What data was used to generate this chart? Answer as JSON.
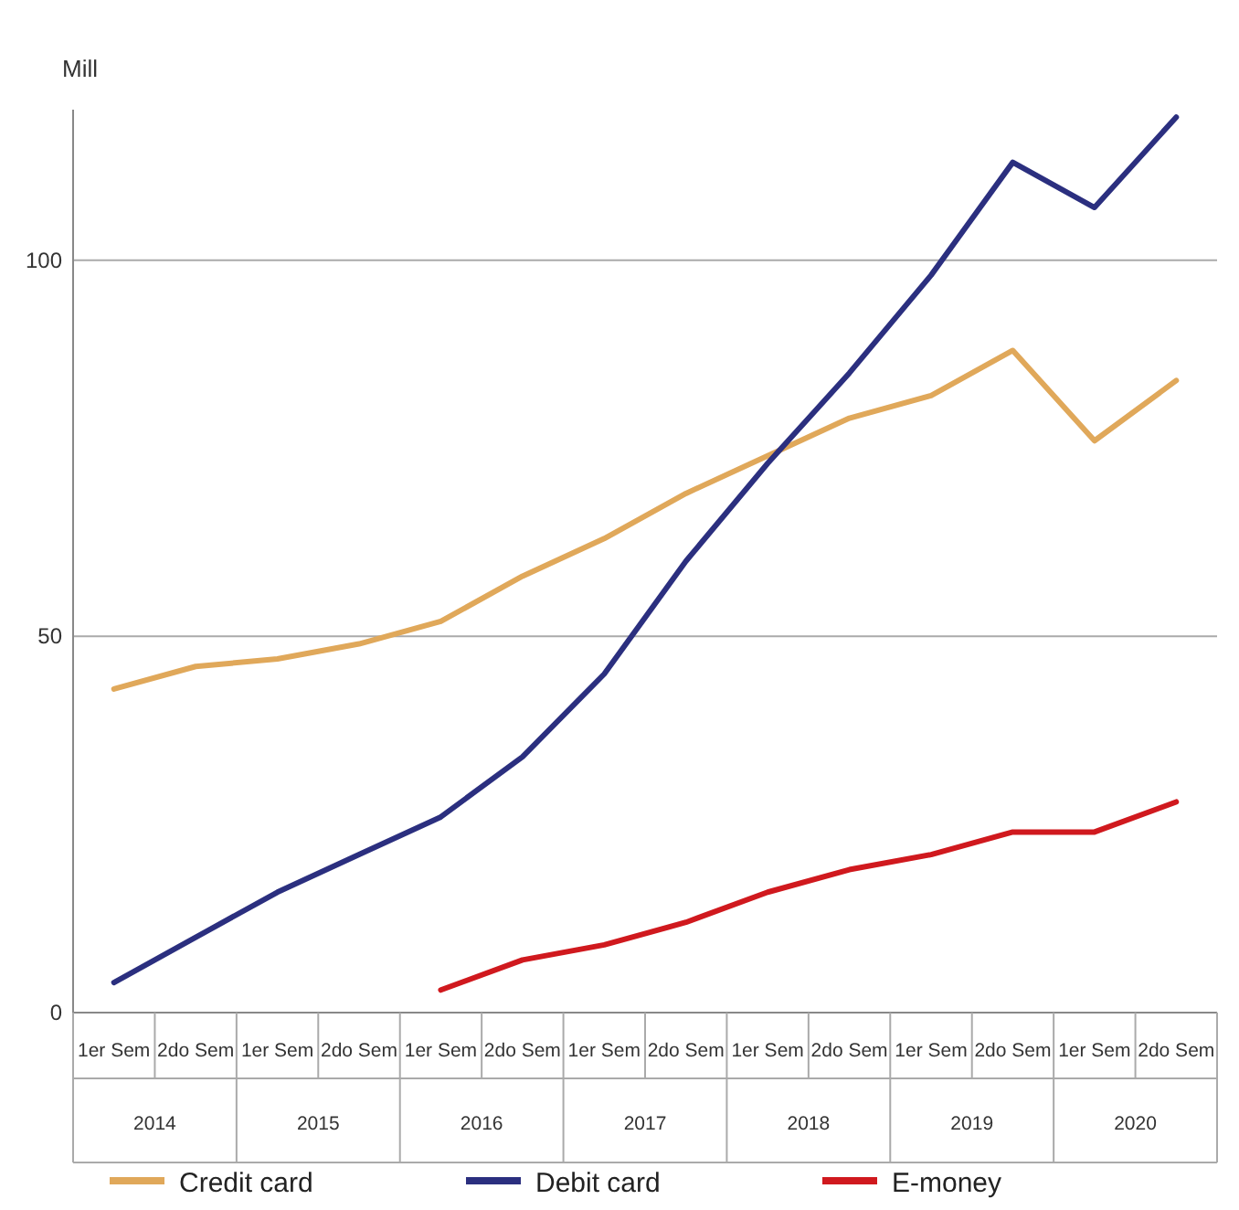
{
  "chart_data": {
    "type": "line",
    "ylabel": "Mill",
    "categories": [
      "1er Sem",
      "2do Sem",
      "1er Sem",
      "2do Sem",
      "1er Sem",
      "2do Sem",
      "1er Sem",
      "2do Sem",
      "1er Sem",
      "2do Sem",
      "1er Sem",
      "2do Sem",
      "1er Sem",
      "2do Sem"
    ],
    "annotations": [
      "2014",
      "2015",
      "2016",
      "2017",
      "2018",
      "2019",
      "2020"
    ],
    "series": [
      {
        "name": "Credit card",
        "color": "#e0a85a",
        "values": [
          43,
          46,
          47,
          49,
          52,
          58,
          63,
          69,
          74,
          79,
          82,
          88,
          76,
          84
        ]
      },
      {
        "name": "Debit card",
        "color": "#2b2f7f",
        "values": [
          4,
          10,
          16,
          21,
          26,
          34,
          45,
          60,
          73,
          85,
          98,
          113,
          107,
          119
        ]
      },
      {
        "name": "E-money",
        "color": "#d0191e",
        "values": [
          null,
          null,
          null,
          null,
          3,
          7,
          9,
          12,
          16,
          19,
          21,
          24,
          24,
          28
        ]
      }
    ],
    "ylim": [
      0,
      120
    ],
    "yticks": [
      0,
      50,
      100
    ],
    "grid": "y",
    "legend": "bottom",
    "marker": "none",
    "line_style": "solid"
  }
}
